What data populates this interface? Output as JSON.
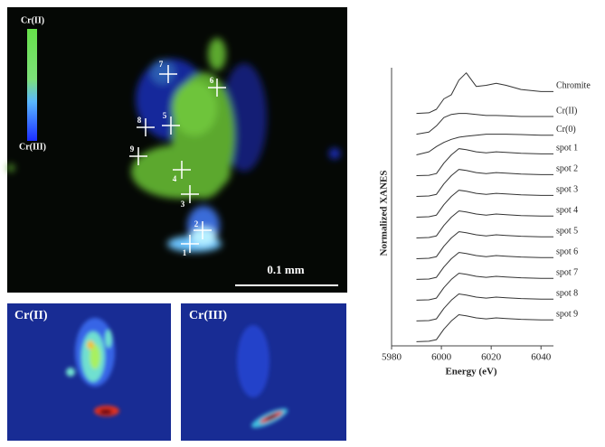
{
  "map": {
    "colorbar_top": "Cr(II)",
    "colorbar_bottom": "Cr(III)",
    "scale": "0.1 mm",
    "spots": [
      "1",
      "2",
      "3",
      "4",
      "5",
      "6",
      "7",
      "8",
      "9"
    ]
  },
  "panels": [
    {
      "label": "Cr(II)"
    },
    {
      "label": "Cr(III)"
    }
  ],
  "chart_data": {
    "type": "line",
    "xlabel": "Energy (eV)",
    "ylabel": "Normalized XANES",
    "x": [
      5990,
      5995,
      5998,
      6001,
      6004,
      6007,
      6010,
      6014,
      6018,
      6022,
      6026,
      6032,
      6040,
      6045
    ],
    "xlim": [
      5980,
      6045
    ],
    "xticks": [
      5980,
      6000,
      6020,
      6040
    ],
    "ylim": [
      0,
      13.4
    ],
    "series": [
      {
        "name": "Chromite",
        "color": "#333333",
        "values": [
          11.2,
          11.23,
          11.4,
          11.9,
          12.1,
          12.8,
          13.15,
          12.5,
          12.55,
          12.65,
          12.55,
          12.35,
          12.25,
          12.25
        ]
      },
      {
        "name": "Cr(II)",
        "color": "#333333",
        "values": [
          10.2,
          10.3,
          10.6,
          11.0,
          11.15,
          11.2,
          11.2,
          11.15,
          11.1,
          11.1,
          11.08,
          11.05,
          11.05,
          11.05
        ]
      },
      {
        "name": "Cr(0)",
        "color": "#333333",
        "values": [
          9.2,
          9.35,
          9.6,
          9.8,
          9.95,
          10.05,
          10.1,
          10.15,
          10.2,
          10.2,
          10.2,
          10.18,
          10.15,
          10.15
        ]
      },
      {
        "name": "spot 1",
        "color": "#333333",
        "values": [
          8.2,
          8.22,
          8.3,
          8.8,
          9.2,
          9.5,
          9.45,
          9.35,
          9.3,
          9.35,
          9.32,
          9.28,
          9.25,
          9.25
        ]
      },
      {
        "name": "spot 2",
        "color": "#333333",
        "values": [
          7.2,
          7.22,
          7.3,
          7.8,
          8.2,
          8.5,
          8.45,
          8.35,
          8.3,
          8.35,
          8.32,
          8.28,
          8.25,
          8.25
        ]
      },
      {
        "name": "spot 3",
        "color": "#333333",
        "values": [
          6.2,
          6.22,
          6.3,
          6.8,
          7.2,
          7.5,
          7.45,
          7.35,
          7.3,
          7.35,
          7.32,
          7.28,
          7.25,
          7.25
        ]
      },
      {
        "name": "spot 4",
        "color": "#333333",
        "values": [
          5.2,
          5.22,
          5.3,
          5.8,
          6.2,
          6.5,
          6.45,
          6.35,
          6.3,
          6.35,
          6.32,
          6.28,
          6.25,
          6.25
        ]
      },
      {
        "name": "spot 5",
        "color": "#333333",
        "values": [
          4.2,
          4.22,
          4.3,
          4.8,
          5.2,
          5.5,
          5.45,
          5.35,
          5.3,
          5.35,
          5.32,
          5.28,
          5.25,
          5.25
        ]
      },
      {
        "name": "spot 6",
        "color": "#333333",
        "values": [
          3.2,
          3.22,
          3.3,
          3.8,
          4.2,
          4.5,
          4.45,
          4.35,
          4.3,
          4.35,
          4.32,
          4.28,
          4.25,
          4.25
        ]
      },
      {
        "name": "spot 7",
        "color": "#333333",
        "values": [
          2.2,
          2.22,
          2.3,
          2.8,
          3.2,
          3.5,
          3.45,
          3.35,
          3.3,
          3.35,
          3.32,
          3.28,
          3.25,
          3.25
        ]
      },
      {
        "name": "spot 8",
        "color": "#333333",
        "values": [
          1.2,
          1.22,
          1.3,
          1.8,
          2.2,
          2.5,
          2.45,
          2.35,
          2.3,
          2.35,
          2.32,
          2.28,
          2.25,
          2.25
        ]
      },
      {
        "name": "spot 9",
        "color": "#333333",
        "values": [
          0.2,
          0.22,
          0.3,
          0.8,
          1.2,
          1.5,
          1.45,
          1.35,
          1.3,
          1.35,
          1.32,
          1.28,
          1.25,
          1.25
        ]
      }
    ]
  }
}
